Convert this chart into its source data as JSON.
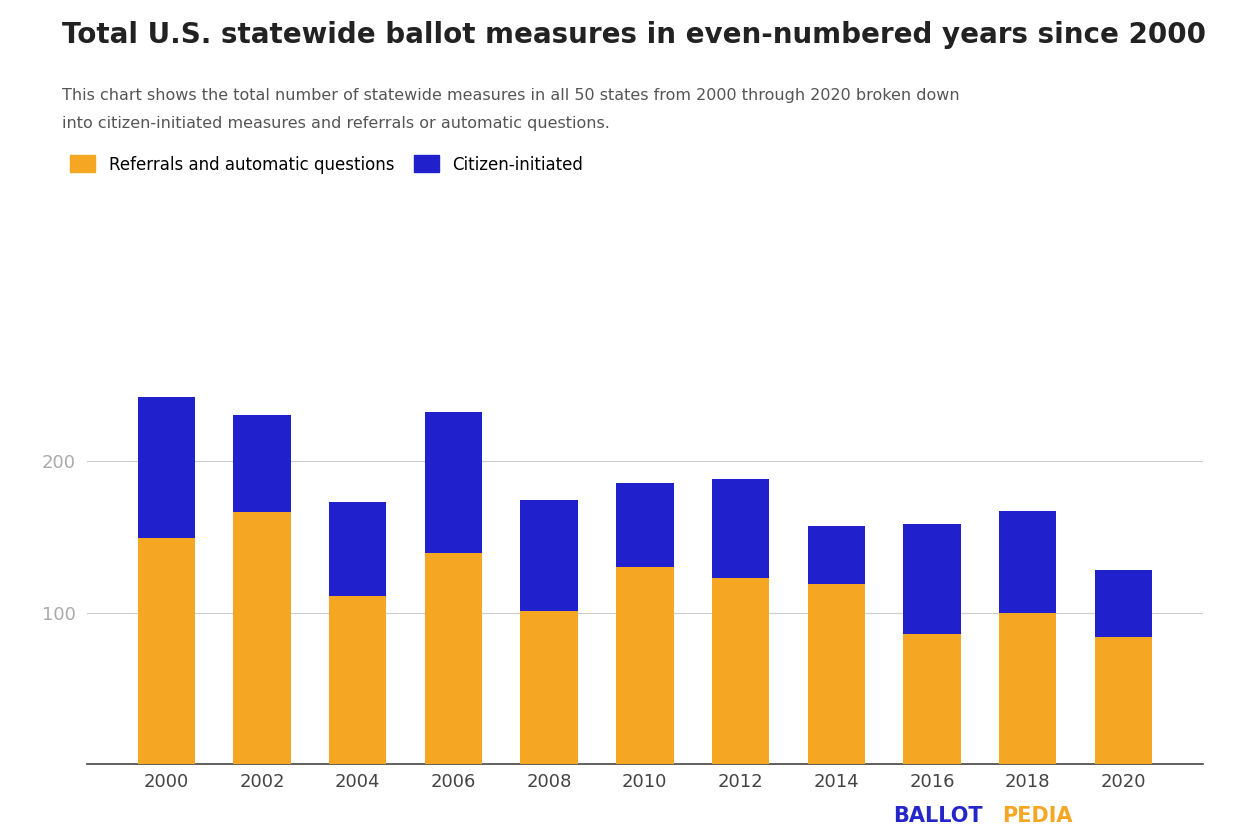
{
  "title": "Total U.S. statewide ballot measures in even-numbered years since 2000",
  "subtitle_line1": "This chart shows the total number of statewide measures in all 50 states from 2000 through 2020 broken down",
  "subtitle_line2": "into citizen-initiated measures and referrals or automatic questions.",
  "years": [
    2000,
    2002,
    2004,
    2006,
    2008,
    2010,
    2012,
    2014,
    2016,
    2018,
    2020
  ],
  "referrals": [
    149,
    166,
    111,
    139,
    101,
    130,
    123,
    119,
    86,
    100,
    84
  ],
  "citizen": [
    93,
    64,
    62,
    93,
    73,
    55,
    65,
    38,
    72,
    67,
    44
  ],
  "color_referrals": "#F5A623",
  "color_citizen": "#2020CC",
  "background_color": "#ffffff",
  "grid_color": "#cccccc",
  "ylim": [
    0,
    260
  ],
  "yticks": [
    100,
    200
  ],
  "legend_label_referrals": "Referrals and automatic questions",
  "legend_label_citizen": "Citizen-initiated",
  "ballotpedia_color_ballot": "#2525CC",
  "ballotpedia_color_pedia": "#F5A623",
  "title_fontsize": 20,
  "subtitle_fontsize": 11.5,
  "tick_fontsize": 13,
  "legend_fontsize": 12
}
